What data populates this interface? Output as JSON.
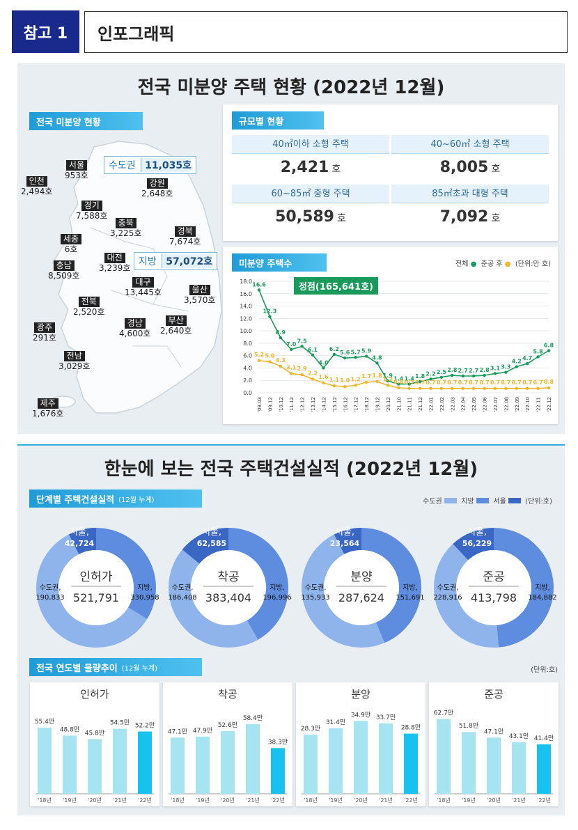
{
  "header": {
    "badge": "참고 1",
    "title": "인포그래픽"
  },
  "section1": {
    "title": "전국 미분양 주택 현황 (2022년 12월)",
    "map_label": "전국 미분양 현황",
    "capital_label": "수도권",
    "capital_value": "11,035호",
    "local_label": "지방",
    "local_value": "57,072호",
    "regions": [
      {
        "name": "서울",
        "value": "953호"
      },
      {
        "name": "인천",
        "value": "2,494호"
      },
      {
        "name": "강원",
        "value": "2,648호"
      },
      {
        "name": "경기",
        "value": "7,588호"
      },
      {
        "name": "충북",
        "value": "3,225호"
      },
      {
        "name": "경북",
        "value": "7,674호"
      },
      {
        "name": "세종",
        "value": "6호"
      },
      {
        "name": "대전",
        "value": "3,239호"
      },
      {
        "name": "충남",
        "value": "8,509호"
      },
      {
        "name": "대구",
        "value": "13,445호"
      },
      {
        "name": "울산",
        "value": "3,570호"
      },
      {
        "name": "전북",
        "value": "2,520호"
      },
      {
        "name": "광주",
        "value": "291호"
      },
      {
        "name": "경남",
        "value": "4,600호"
      },
      {
        "name": "부산",
        "value": "2,640호"
      },
      {
        "name": "전남",
        "value": "3,029호"
      },
      {
        "name": "제주",
        "value": "1,676호"
      }
    ],
    "scale_label": "규모별 현황",
    "scale": [
      {
        "title": "40㎡이하 소형 주택",
        "value": "2,421",
        "unit": "호"
      },
      {
        "title": "40~60㎡ 소형 주택",
        "value": "8,005",
        "unit": "호"
      },
      {
        "title": "60~85㎡ 중형 주택",
        "value": "50,589",
        "unit": "호"
      },
      {
        "title": "85㎡초과 대형 주택",
        "value": "7,092",
        "unit": "호"
      }
    ],
    "trend_label": "미분양 주택수",
    "legend_total": "전체",
    "legend_done": "준공 후",
    "legend_unit": "(단위:만 호)",
    "peak_label": "정점(165,641호)",
    "colors": {
      "total": "#1a9a5a",
      "done": "#f0b429"
    }
  },
  "chart_data": [
    {
      "type": "line",
      "title": "미분양 주택수",
      "ylabel": "",
      "ylim": [
        0,
        18
      ],
      "yticks": [
        "18.0",
        "16.0",
        "14.0",
        "12.0",
        "10.0",
        "8.0",
        "6.0",
        "4.0",
        "2.0",
        "0.0"
      ],
      "x": [
        "'09.03",
        "'09.12",
        "'10.12",
        "'11.12",
        "'12.12",
        "'13.12",
        "'14.12",
        "'15.12",
        "'16.12",
        "'17.12",
        "'18.12",
        "'19.12",
        "'20.12",
        "'21.10",
        "'21.11",
        "'21.12",
        "'22.01",
        "'22.02",
        "'22.03",
        "'22.04",
        "'22.05",
        "'22.06",
        "'22.07",
        "'22.08",
        "'22.09",
        "'22.10",
        "'22.11",
        "'22.12"
      ],
      "series": [
        {
          "name": "전체",
          "values": [
            16.6,
            12.3,
            8.9,
            7.0,
            7.5,
            6.1,
            4.0,
            6.2,
            5.6,
            5.7,
            5.9,
            4.8,
            1.9,
            1.4,
            1.4,
            1.8,
            2.2,
            2.5,
            2.8,
            2.7,
            2.7,
            2.8,
            3.1,
            3.3,
            4.2,
            4.7,
            5.8,
            6.8
          ]
        },
        {
          "name": "준공 후",
          "values": [
            5.2,
            5.0,
            4.3,
            3.1,
            2.9,
            2.2,
            1.6,
            1.1,
            1.0,
            1.2,
            1.7,
            1.8,
            1.2,
            0.8,
            0.7,
            0.7,
            0.7,
            0.7,
            0.7,
            0.7,
            0.7,
            0.7,
            0.7,
            0.7,
            0.7,
            0.7,
            0.7,
            0.8
          ]
        }
      ]
    },
    {
      "type": "pie",
      "title": "인허가",
      "total": "521,791",
      "slices": [
        {
          "name": "지방",
          "value": 330958,
          "label": "330,958"
        },
        {
          "name": "수도권",
          "value": 190833,
          "label": "190,833"
        },
        {
          "name": "서울",
          "value": 42724,
          "label": "42,724"
        }
      ]
    },
    {
      "type": "pie",
      "title": "착공",
      "total": "383,404",
      "slices": [
        {
          "name": "지방",
          "value": 196996,
          "label": "196,996"
        },
        {
          "name": "수도권",
          "value": 186408,
          "label": "186,408"
        },
        {
          "name": "서울",
          "value": 62585,
          "label": "62,585"
        }
      ]
    },
    {
      "type": "pie",
      "title": "분양",
      "total": "287,624",
      "slices": [
        {
          "name": "지방",
          "value": 151691,
          "label": "151,691"
        },
        {
          "name": "수도권",
          "value": 135933,
          "label": "135,933"
        },
        {
          "name": "서울",
          "value": 23564,
          "label": "23,564"
        }
      ]
    },
    {
      "type": "pie",
      "title": "준공",
      "total": "413,798",
      "slices": [
        {
          "name": "지방",
          "value": 184882,
          "label": "184,882"
        },
        {
          "name": "수도권",
          "value": 228916,
          "label": "228,916"
        },
        {
          "name": "서울",
          "value": 56229,
          "label": "56,229"
        }
      ]
    },
    {
      "type": "bar",
      "title": "인허가",
      "categories": [
        "'18년",
        "'19년",
        "'20년",
        "'21년",
        "'22년"
      ],
      "values": [
        55.4,
        48.8,
        45.8,
        54.5,
        52.2
      ],
      "labels": [
        "55.4만",
        "48.8만",
        "45.8만",
        "54.5만",
        "52.2만"
      ],
      "ylim": [
        0,
        70
      ]
    },
    {
      "type": "bar",
      "title": "착공",
      "categories": [
        "'18년",
        "'19년",
        "'20년",
        "'21년",
        "'22년"
      ],
      "values": [
        47.1,
        47.9,
        52.6,
        58.4,
        38.3
      ],
      "labels": [
        "47.1만",
        "47.9만",
        "52.6만",
        "58.4만",
        "38.3만"
      ],
      "ylim": [
        0,
        70
      ]
    },
    {
      "type": "bar",
      "title": "분양",
      "categories": [
        "'18년",
        "'19년",
        "'20년",
        "'21년",
        "'22년"
      ],
      "values": [
        28.3,
        31.4,
        34.9,
        33.7,
        28.8
      ],
      "labels": [
        "28.3만",
        "31.4만",
        "34.9만",
        "33.7만",
        "28.8만"
      ],
      "ylim": [
        0,
        40
      ]
    },
    {
      "type": "bar",
      "title": "준공",
      "categories": [
        "'18년",
        "'19년",
        "'20년",
        "'21년",
        "'22년"
      ],
      "values": [
        62.7,
        51.8,
        47.1,
        43.1,
        41.4
      ],
      "labels": [
        "62.7만",
        "51.8만",
        "47.1만",
        "43.1만",
        "41.4만"
      ],
      "ylim": [
        0,
        70
      ]
    }
  ],
  "section2": {
    "title": "한눈에 보는 전국 주택건설실적 (2022년 12월)",
    "stage_label": "단계별 주택건설실적",
    "stage_sub": "(12월 누계)",
    "legend": [
      "수도권",
      "지방",
      "서울"
    ],
    "legend_unit": "(단위:호)",
    "donut_labels": {
      "seoul": "서울,",
      "capital": "수도권,",
      "local": "지방,"
    },
    "pie_colors": {
      "지방": "#8fb4ec",
      "수도권": "#5e8de0",
      "서울": "#3a66c4"
    },
    "year_label": "전국 연도별 물량추이",
    "year_sub": "(12월 누계)",
    "year_unit": "(단위:호)"
  }
}
